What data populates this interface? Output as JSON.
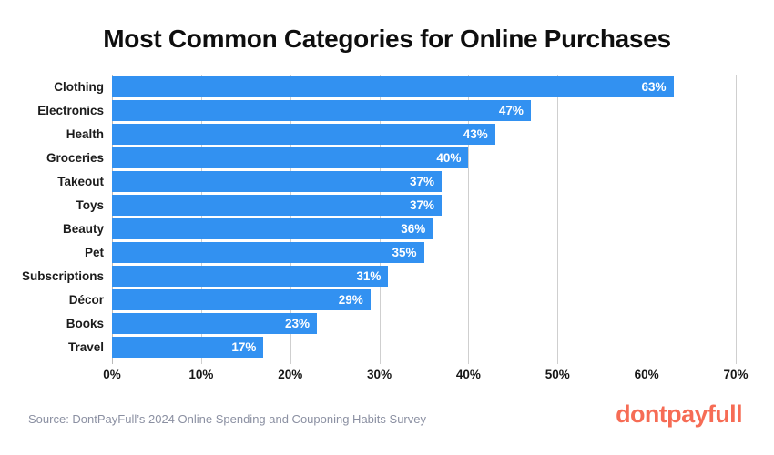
{
  "title": "Most Common Categories for Online Purchases",
  "chart_data": {
    "type": "bar",
    "orientation": "horizontal",
    "title": "Most Common Categories for Online Purchases",
    "categories": [
      "Clothing",
      "Electronics",
      "Health",
      "Groceries",
      "Takeout",
      "Toys",
      "Beauty",
      "Pet",
      "Subscriptions",
      "Décor",
      "Books",
      "Travel"
    ],
    "values": [
      63,
      47,
      43,
      40,
      37,
      37,
      36,
      35,
      31,
      29,
      23,
      17
    ],
    "value_labels": [
      "63%",
      "47%",
      "43%",
      "40%",
      "37%",
      "37%",
      "36%",
      "35%",
      "31%",
      "29%",
      "23%",
      "17%"
    ],
    "x_ticks": [
      "0%",
      "10%",
      "20%",
      "30%",
      "40%",
      "50%",
      "60%",
      "70%"
    ],
    "xlim": [
      0,
      70
    ],
    "xlabel": "",
    "ylabel": "",
    "grid": true,
    "legend": false,
    "bar_color": "#3291F1",
    "value_label_color": "#ffffff",
    "gridline_color": "#cfcfcf"
  },
  "footer": {
    "source": "Source: DontPayFull’s 2024 Online Spending and Couponing Habits Survey",
    "logo": "dontpayfull",
    "logo_color": "#F66C55"
  }
}
